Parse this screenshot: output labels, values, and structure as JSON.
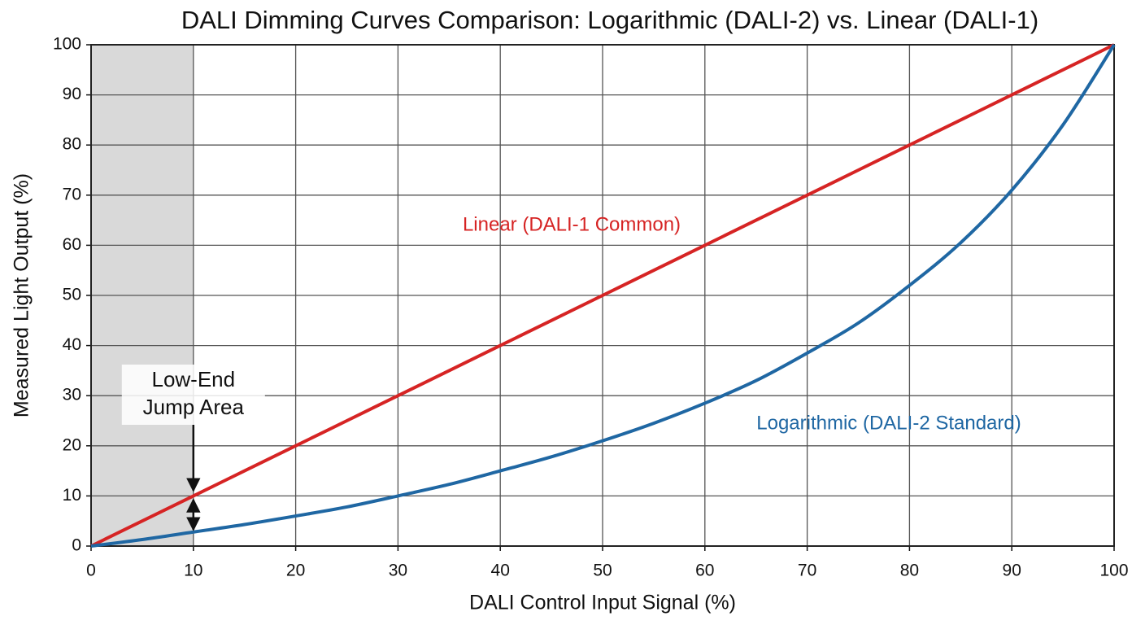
{
  "chart_data": {
    "type": "line",
    "title": "DALI Dimming Curves Comparison: Logarithmic (DALI-2) vs. Linear (DALI-1)",
    "x_label": "DALI Control Input Signal (%)",
    "y_label": "Measured Light Output (%)",
    "x": [
      0,
      5,
      10,
      15,
      20,
      25,
      30,
      35,
      40,
      45,
      50,
      55,
      60,
      65,
      70,
      75,
      80,
      85,
      90,
      95,
      100
    ],
    "series": [
      {
        "name": "Linear (DALI-1 Common)",
        "color": "#d62424",
        "values": [
          0,
          5,
          10,
          15,
          20,
          25,
          30,
          35,
          40,
          45,
          50,
          55,
          60,
          65,
          70,
          75,
          80,
          85,
          90,
          95,
          100
        ]
      },
      {
        "name": "Logarithmic (DALI-2 Standard)",
        "color": "#1f67a3",
        "values": [
          0,
          1.3,
          2.8,
          4.3,
          6,
          7.8,
          10,
          12.3,
          15,
          17.8,
          21,
          24.5,
          28.5,
          33,
          38.5,
          44.5,
          52,
          60.5,
          71,
          84,
          100
        ]
      }
    ],
    "xlim": [
      0,
      100
    ],
    "xticks": [
      0,
      10,
      20,
      30,
      40,
      50,
      60,
      70,
      80,
      90,
      100
    ],
    "ylim": [
      0,
      100
    ],
    "yticks": [
      0,
      10,
      20,
      30,
      40,
      50,
      60,
      70,
      80,
      90,
      100
    ],
    "grid": true,
    "highlight_xrange": [
      0,
      10
    ],
    "annotation": [
      "Low-End",
      "Jump Area"
    ]
  }
}
